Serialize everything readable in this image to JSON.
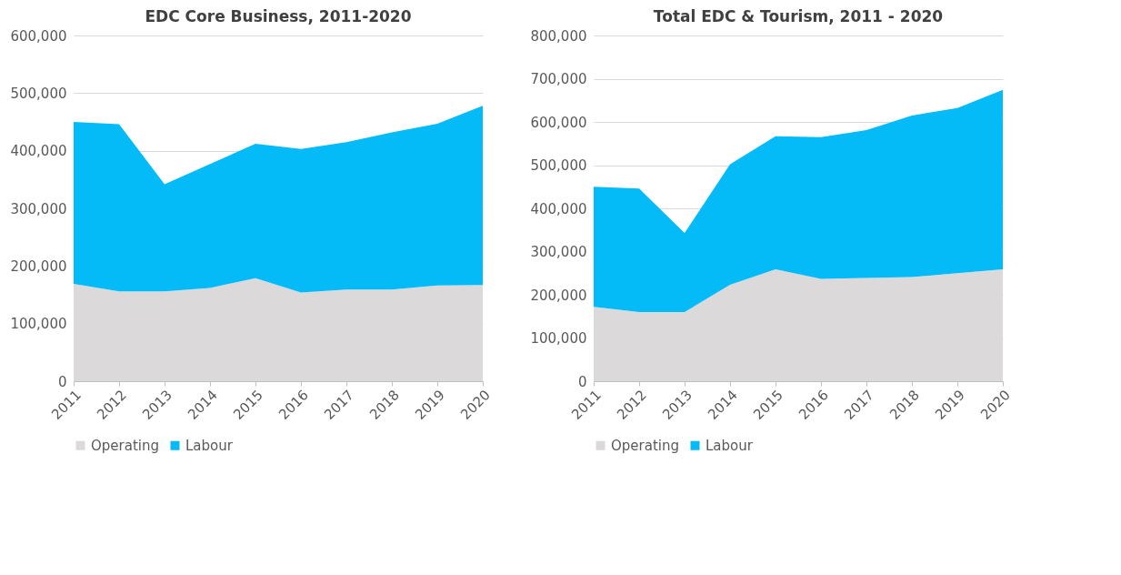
{
  "chart_data": [
    {
      "type": "area",
      "title": "EDC Core Business, 2011-2020",
      "categories": [
        "2011",
        "2012",
        "2013",
        "2014",
        "2015",
        "2016",
        "2017",
        "2018",
        "2019",
        "2020"
      ],
      "stacked": true,
      "ylim": [
        0,
        600000
      ],
      "yticks": [
        0,
        {
          "value": 100000,
          "label": "100,000"
        },
        {
          "value": 200000,
          "label": "200,000"
        },
        {
          "value": 300000,
          "label": "300,000"
        },
        {
          "value": 400000,
          "label": "400,000"
        },
        {
          "value": 500000,
          "label": "500,000"
        },
        {
          "value": 600000,
          "label": "600,000"
        }
      ],
      "grid": "y",
      "legend": "bottom",
      "series": [
        {
          "name": "Operating",
          "color": "#dbd9da",
          "values": [
            169000,
            156000,
            156000,
            162000,
            179000,
            154000,
            159000,
            159000,
            166000,
            167000
          ]
        },
        {
          "name": "Labour",
          "color": "#05bbf7",
          "values": [
            281000,
            290000,
            186000,
            215000,
            233000,
            249000,
            256000,
            273000,
            281000,
            311000
          ]
        }
      ]
    },
    {
      "type": "area",
      "title": "Total EDC & Tourism, 2011 - 2020",
      "categories": [
        "2011",
        "2012",
        "2013",
        "2014",
        "2015",
        "2016",
        "2017",
        "2018",
        "2019",
        "2020"
      ],
      "stacked": true,
      "ylim": [
        0,
        800000
      ],
      "yticks": [
        0,
        {
          "value": 100000,
          "label": "100,000"
        },
        {
          "value": 200000,
          "label": "200,000"
        },
        {
          "value": 300000,
          "label": "300,000"
        },
        {
          "value": 400000,
          "label": "400,000"
        },
        {
          "value": 500000,
          "label": "500,000"
        },
        {
          "value": 600000,
          "label": "600,000"
        },
        {
          "value": 700000,
          "label": "700,000"
        },
        {
          "value": 800000,
          "label": "800,000"
        }
      ],
      "grid": "y",
      "legend": "bottom",
      "series": [
        {
          "name": "Operating",
          "color": "#dbd9da",
          "values": [
            172000,
            160000,
            160000,
            223000,
            259000,
            237000,
            239000,
            241000,
            250000,
            259000
          ]
        },
        {
          "name": "Labour",
          "color": "#05bbf7",
          "values": [
            278000,
            286000,
            183000,
            279000,
            308000,
            328000,
            342000,
            374000,
            382000,
            415000
          ]
        }
      ]
    }
  ]
}
